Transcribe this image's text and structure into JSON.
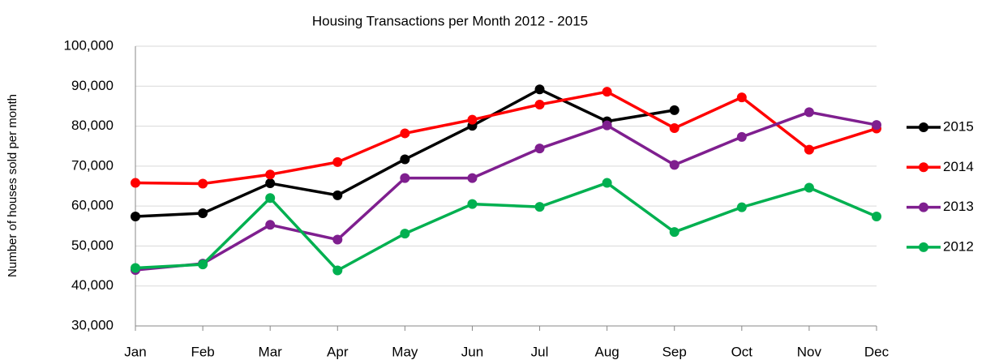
{
  "chart_data": {
    "type": "line",
    "title": "Housing Transactions per Month 2012 - 2015",
    "y_label": "Number of houses sold per month",
    "categories": [
      "Jan",
      "Feb",
      "Mar",
      "Apr",
      "May",
      "Jun",
      "Jul",
      "Aug",
      "Sep",
      "Oct",
      "Nov",
      "Dec"
    ],
    "series": [
      {
        "name": "2015",
        "color": "#000000",
        "values": [
          57400,
          58200,
          65700,
          62700,
          71700,
          80100,
          89200,
          81200,
          84000,
          null,
          null,
          null
        ]
      },
      {
        "name": "2014",
        "color": "#ff0000",
        "values": [
          65800,
          65600,
          67900,
          71000,
          78200,
          81600,
          85400,
          88600,
          79500,
          87200,
          74100,
          79400
        ]
      },
      {
        "name": "2013",
        "color": "#7f1f8f",
        "values": [
          44000,
          45600,
          55300,
          51600,
          67000,
          67000,
          74400,
          80200,
          70300,
          77300,
          83500,
          80300
        ]
      },
      {
        "name": "2012",
        "color": "#00b050",
        "values": [
          44500,
          45400,
          62000,
          43900,
          53100,
          60500,
          59800,
          65800,
          53500,
          59700,
          64600,
          57400
        ]
      }
    ],
    "ylim": [
      30000,
      100000
    ],
    "yticks": [
      {
        "value": 30000,
        "label": "30,000"
      },
      {
        "value": 40000,
        "label": "40,000"
      },
      {
        "value": 50000,
        "label": "50,000"
      },
      {
        "value": 60000,
        "label": "60,000"
      },
      {
        "value": 70000,
        "label": "70,000"
      },
      {
        "value": 80000,
        "label": "80,000"
      },
      {
        "value": 90000,
        "label": "90,000"
      },
      {
        "value": 100000,
        "label": "100,000"
      }
    ],
    "grid": true,
    "legend": "right"
  }
}
